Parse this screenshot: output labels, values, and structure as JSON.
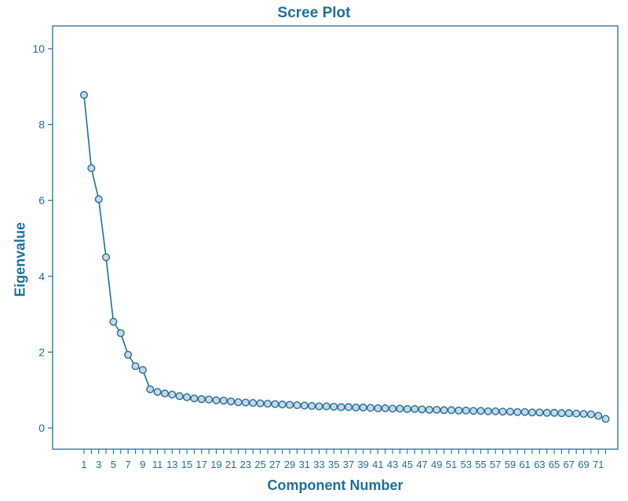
{
  "chart_data": {
    "type": "line",
    "title": "Scree Plot",
    "xlabel": "Component Number",
    "ylabel": "Eigenvalue",
    "ylim": [
      0,
      10
    ],
    "yticks": [
      0,
      2,
      4,
      6,
      8,
      10
    ],
    "xlim": [
      1,
      72
    ],
    "xticks": [
      1,
      3,
      5,
      7,
      9,
      11,
      13,
      15,
      17,
      19,
      21,
      23,
      25,
      27,
      29,
      31,
      33,
      35,
      37,
      39,
      41,
      43,
      45,
      47,
      49,
      51,
      53,
      55,
      57,
      59,
      61,
      63,
      65,
      67,
      69,
      71
    ],
    "x": [
      1,
      2,
      3,
      4,
      5,
      6,
      7,
      8,
      9,
      10,
      11,
      12,
      13,
      14,
      15,
      16,
      17,
      18,
      19,
      20,
      21,
      22,
      23,
      24,
      25,
      26,
      27,
      28,
      29,
      30,
      31,
      32,
      33,
      34,
      35,
      36,
      37,
      38,
      39,
      40,
      41,
      42,
      43,
      44,
      45,
      46,
      47,
      48,
      49,
      50,
      51,
      52,
      53,
      54,
      55,
      56,
      57,
      58,
      59,
      60,
      61,
      62,
      63,
      64,
      65,
      66,
      67,
      68,
      69,
      70,
      71,
      72
    ],
    "values": [
      8.78,
      6.85,
      6.03,
      4.5,
      2.8,
      2.5,
      1.93,
      1.63,
      1.53,
      1.02,
      0.95,
      0.91,
      0.88,
      0.84,
      0.81,
      0.78,
      0.76,
      0.75,
      0.73,
      0.72,
      0.7,
      0.68,
      0.67,
      0.66,
      0.65,
      0.64,
      0.63,
      0.62,
      0.61,
      0.6,
      0.59,
      0.58,
      0.57,
      0.57,
      0.56,
      0.55,
      0.55,
      0.54,
      0.54,
      0.53,
      0.52,
      0.52,
      0.51,
      0.51,
      0.5,
      0.5,
      0.49,
      0.48,
      0.48,
      0.47,
      0.47,
      0.46,
      0.46,
      0.45,
      0.45,
      0.44,
      0.44,
      0.43,
      0.43,
      0.42,
      0.42,
      0.41,
      0.41,
      0.4,
      0.4,
      0.39,
      0.39,
      0.38,
      0.37,
      0.36,
      0.32,
      0.24
    ],
    "colors": {
      "line": "#1f6e9a",
      "marker_fill": "#c9d7e3",
      "axis": "#1f6e9a",
      "text": "#1f6e9a"
    },
    "grid": false,
    "markers": "open-circle"
  }
}
